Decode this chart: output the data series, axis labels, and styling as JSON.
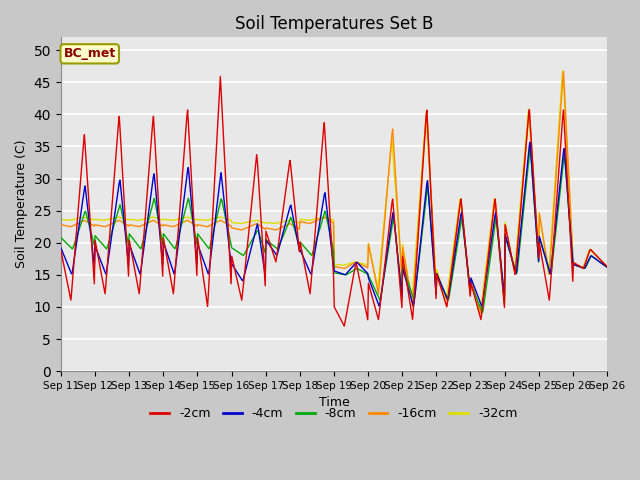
{
  "title": "Soil Temperatures Set B",
  "xlabel": "Time",
  "ylabel": "Soil Temperature (C)",
  "annotation": "BC_met",
  "ylim": [
    0,
    52
  ],
  "yticks": [
    0,
    5,
    10,
    15,
    20,
    25,
    30,
    35,
    40,
    45,
    50
  ],
  "series_colors": {
    "-2cm": "#dd0000",
    "-4cm": "#0000cc",
    "-8cm": "#00aa00",
    "-16cm": "#ff8800",
    "-32cm": "#dddd00"
  },
  "series_labels": [
    "-2cm",
    "-4cm",
    "-8cm",
    "-16cm",
    "-32cm"
  ],
  "background_color": "#e8e8e8",
  "fig_background": "#d0d0d0",
  "x_tick_labels": [
    "Sep 11",
    "Sep 12",
    "Sep 13",
    "Sep 14",
    "Sep 15",
    "Sep 16",
    "Sep 17",
    "Sep 18",
    "Sep 19",
    "Sep 20",
    "Sep 21",
    "Sep 22",
    "Sep 23",
    "Sep 24",
    "Sep 25",
    "Sep 26"
  ],
  "n_days": 16,
  "points_per_day": 48
}
